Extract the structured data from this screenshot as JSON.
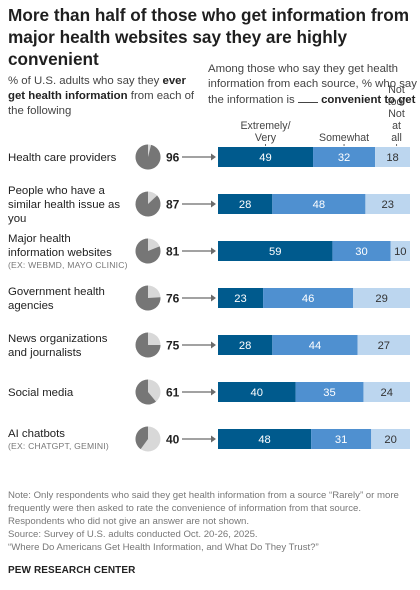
{
  "title": "More than half of those who get information from major health websites say they are highly convenient",
  "left_header": {
    "pre": "% of U.S. adults who say they ",
    "bold": "ever get health information",
    "post": " from each of the following"
  },
  "right_header": {
    "pre": "Among those who say they get health information from each source, % who say the information is ",
    "post_bold": " convenient to get"
  },
  "colors": {
    "extremely_very": "#005a8d",
    "somewhat": "#4f90d0",
    "not_too_not_at_all": "#bcd6ef",
    "pie_filled": "#767676",
    "pie_empty": "#d8d8d8",
    "connector": "#6b6b6b"
  },
  "chart_data": {
    "type": "bar",
    "stacked": true,
    "orientation": "horizontal",
    "categories": [
      {
        "label": "Health care providers",
        "sub": ""
      },
      {
        "label": "People who have a similar health issue as you",
        "sub": ""
      },
      {
        "label": "Major health information websites",
        "sub": "(EX: WEBMD, MAYO CLINIC)"
      },
      {
        "label": "Government health agencies",
        "sub": ""
      },
      {
        "label": "News organizations and journalists",
        "sub": ""
      },
      {
        "label": "Social media",
        "sub": ""
      },
      {
        "label": "AI chatbots",
        "sub": "(EX: CHATGPT, GEMINI)"
      }
    ],
    "ever_get_info_pct": [
      96,
      87,
      81,
      76,
      75,
      61,
      40
    ],
    "series": [
      {
        "name": "Extremely/ Very",
        "values": [
          49,
          28,
          59,
          23,
          28,
          40,
          48
        ]
      },
      {
        "name": "Somewhat",
        "values": [
          32,
          48,
          30,
          46,
          44,
          35,
          31
        ]
      },
      {
        "name": "Not too/ Not at all",
        "values": [
          18,
          23,
          10,
          29,
          27,
          24,
          20
        ]
      }
    ]
  },
  "notes": [
    "Note: Only respondents who said they get health information from a source “Rarely” or more frequently were then asked to rate the convenience of information from that source. Respondents who did not give an answer are not shown.",
    "Source: Survey of U.S. adults conducted Oct. 20-26, 2025.",
    "“Where Do Americans Get Health Information, and What Do They Trust?”"
  ],
  "footer": "PEW RESEARCH CENTER"
}
